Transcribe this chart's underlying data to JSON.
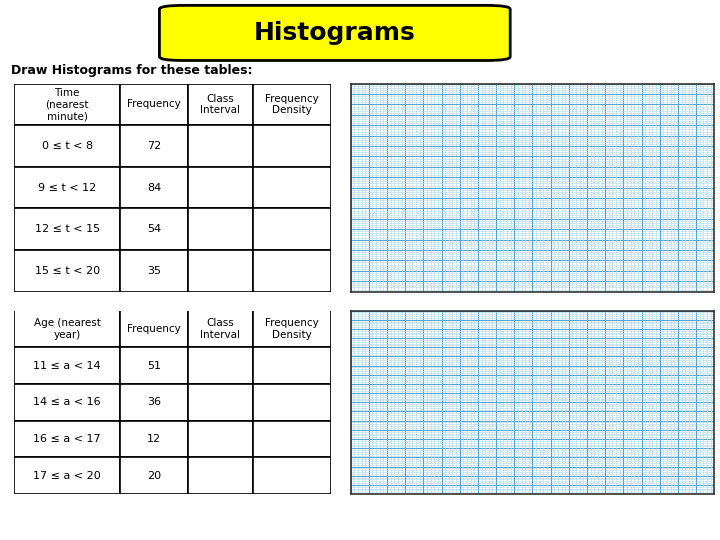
{
  "title": "Histograms",
  "subtitle": "Draw Histograms for these tables:",
  "title_bg": "#FFFF00",
  "title_fontsize": 18,
  "table1_headers": [
    "Time\n(nearest\nminute)",
    "Frequency",
    "Class\nInterval",
    "Frequency\nDensity"
  ],
  "table1_rows": [
    [
      "0 ≤ t < 8",
      "72",
      "",
      ""
    ],
    [
      "9 ≤ t < 12",
      "84",
      "",
      ""
    ],
    [
      "12 ≤ t < 15",
      "54",
      "",
      ""
    ],
    [
      "15 ≤ t < 20",
      "35",
      "",
      ""
    ]
  ],
  "table2_headers": [
    "Age (nearest\nyear)",
    "Frequency",
    "Class\nInterval",
    "Frequency\nDensity"
  ],
  "table2_rows": [
    [
      "11 ≤ a < 14",
      "51",
      "",
      ""
    ],
    [
      "14 ≤ a < 16",
      "36",
      "",
      ""
    ],
    [
      "16 ≤ a < 17",
      "12",
      "",
      ""
    ],
    [
      "17 ≤ a < 20",
      "20",
      "",
      ""
    ]
  ],
  "grid_minor_color": "#ADD8E6",
  "grid_major_color": "#5BA4CF",
  "grid_bg": "#FFFFFF",
  "background_color": "#FFFFFF",
  "minor_step": 1,
  "major_step": 5
}
